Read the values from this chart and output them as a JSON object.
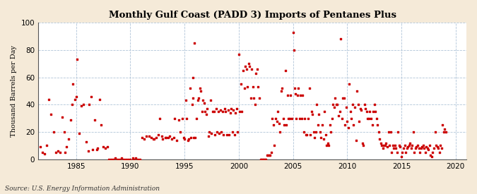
{
  "title": "Monthly Gulf Coast (PADD 3) Imports of Pentanes Plus",
  "ylabel": "Thousand Barrels per Day",
  "source": "Source: U.S. Energy Information Administration",
  "background_color": "#f5ead8",
  "plot_bg_color": "#ffffff",
  "dot_color": "#cc0000",
  "dot_size": 3,
  "xlim": [
    1981.5,
    2021
  ],
  "ylim": [
    0,
    100
  ],
  "yticks": [
    0,
    20,
    40,
    60,
    80,
    100
  ],
  "xticks": [
    1985,
    1990,
    1995,
    2000,
    2005,
    2010,
    2015,
    2020
  ],
  "data": [
    [
      1981.7,
      9
    ],
    [
      1981.9,
      5
    ],
    [
      1982.1,
      4
    ],
    [
      1982.3,
      10
    ],
    [
      1982.5,
      44
    ],
    [
      1982.7,
      33
    ],
    [
      1982.9,
      20
    ],
    [
      1983.1,
      5
    ],
    [
      1983.3,
      6
    ],
    [
      1983.5,
      5
    ],
    [
      1983.7,
      31
    ],
    [
      1983.9,
      20
    ],
    [
      1984.0,
      5
    ],
    [
      1984.1,
      9
    ],
    [
      1984.3,
      15
    ],
    [
      1984.5,
      29
    ],
    [
      1984.6,
      40
    ],
    [
      1984.7,
      55
    ],
    [
      1984.9,
      44
    ],
    [
      1985.0,
      46
    ],
    [
      1985.1,
      73
    ],
    [
      1985.3,
      19
    ],
    [
      1985.5,
      39
    ],
    [
      1985.7,
      40
    ],
    [
      1985.9,
      13
    ],
    [
      1986.1,
      6
    ],
    [
      1986.2,
      40
    ],
    [
      1986.4,
      46
    ],
    [
      1986.5,
      7
    ],
    [
      1986.7,
      29
    ],
    [
      1986.9,
      7
    ],
    [
      1987.0,
      8
    ],
    [
      1987.2,
      44
    ],
    [
      1987.3,
      25
    ],
    [
      1987.5,
      9
    ],
    [
      1987.7,
      8
    ],
    [
      1987.9,
      9
    ],
    [
      1988.0,
      0
    ],
    [
      1988.2,
      0
    ],
    [
      1988.4,
      0
    ],
    [
      1988.6,
      1
    ],
    [
      1988.8,
      0
    ],
    [
      1989.0,
      0
    ],
    [
      1989.2,
      1
    ],
    [
      1989.4,
      0
    ],
    [
      1989.6,
      0
    ],
    [
      1989.8,
      0
    ],
    [
      1990.0,
      0
    ],
    [
      1990.2,
      1
    ],
    [
      1990.3,
      0
    ],
    [
      1990.5,
      1
    ],
    [
      1990.7,
      0
    ],
    [
      1990.9,
      0
    ],
    [
      1991.1,
      16
    ],
    [
      1991.3,
      15
    ],
    [
      1991.5,
      17
    ],
    [
      1991.7,
      17
    ],
    [
      1991.9,
      16
    ],
    [
      1992.1,
      15
    ],
    [
      1992.2,
      15
    ],
    [
      1992.4,
      16
    ],
    [
      1992.6,
      18
    ],
    [
      1992.7,
      30
    ],
    [
      1992.9,
      17
    ],
    [
      1993.0,
      15
    ],
    [
      1993.2,
      16
    ],
    [
      1993.3,
      16
    ],
    [
      1993.5,
      16
    ],
    [
      1993.6,
      17
    ],
    [
      1993.8,
      15
    ],
    [
      1994.0,
      16
    ],
    [
      1994.1,
      30
    ],
    [
      1994.3,
      14
    ],
    [
      1994.5,
      29
    ],
    [
      1994.6,
      20
    ],
    [
      1994.8,
      30
    ],
    [
      1994.9,
      16
    ],
    [
      1995.0,
      15
    ],
    [
      1995.1,
      43
    ],
    [
      1995.2,
      30
    ],
    [
      1995.3,
      14
    ],
    [
      1995.4,
      15
    ],
    [
      1995.5,
      52
    ],
    [
      1995.6,
      16
    ],
    [
      1995.7,
      40
    ],
    [
      1995.75,
      45
    ],
    [
      1995.8,
      60
    ],
    [
      1995.85,
      16
    ],
    [
      1995.9,
      85
    ],
    [
      1996.0,
      16
    ],
    [
      1996.1,
      30
    ],
    [
      1996.2,
      43
    ],
    [
      1996.3,
      45
    ],
    [
      1996.4,
      52
    ],
    [
      1996.5,
      50
    ],
    [
      1996.6,
      35
    ],
    [
      1996.7,
      43
    ],
    [
      1996.8,
      41
    ],
    [
      1996.9,
      35
    ],
    [
      1997.0,
      33
    ],
    [
      1997.1,
      37
    ],
    [
      1997.2,
      17
    ],
    [
      1997.3,
      20
    ],
    [
      1997.4,
      43
    ],
    [
      1997.5,
      19
    ],
    [
      1997.6,
      35
    ],
    [
      1997.7,
      35
    ],
    [
      1997.8,
      18
    ],
    [
      1997.9,
      37
    ],
    [
      1998.0,
      20
    ],
    [
      1998.1,
      35
    ],
    [
      1998.2,
      19
    ],
    [
      1998.3,
      36
    ],
    [
      1998.4,
      20
    ],
    [
      1998.5,
      35
    ],
    [
      1998.6,
      18
    ],
    [
      1998.7,
      37
    ],
    [
      1998.8,
      35
    ],
    [
      1998.9,
      18
    ],
    [
      1999.0,
      36
    ],
    [
      1999.1,
      18
    ],
    [
      1999.2,
      34
    ],
    [
      1999.3,
      37
    ],
    [
      1999.4,
      20
    ],
    [
      1999.5,
      36
    ],
    [
      1999.6,
      18
    ],
    [
      1999.7,
      34
    ],
    [
      1999.8,
      37
    ],
    [
      1999.9,
      20
    ],
    [
      2000.0,
      77
    ],
    [
      2000.1,
      35
    ],
    [
      2000.2,
      55
    ],
    [
      2000.3,
      35
    ],
    [
      2000.4,
      65
    ],
    [
      2000.5,
      52
    ],
    [
      2000.6,
      68
    ],
    [
      2000.7,
      66
    ],
    [
      2000.8,
      53
    ],
    [
      2000.9,
      70
    ],
    [
      2001.0,
      68
    ],
    [
      2001.1,
      45
    ],
    [
      2001.2,
      66
    ],
    [
      2001.3,
      53
    ],
    [
      2001.4,
      45
    ],
    [
      2001.5,
      40
    ],
    [
      2001.6,
      63
    ],
    [
      2001.7,
      66
    ],
    [
      2001.8,
      53
    ],
    [
      2001.9,
      45
    ],
    [
      2002.0,
      0
    ],
    [
      2002.1,
      0
    ],
    [
      2002.2,
      0
    ],
    [
      2002.3,
      0
    ],
    [
      2002.4,
      0
    ],
    [
      2002.5,
      0
    ],
    [
      2002.6,
      3
    ],
    [
      2002.7,
      3
    ],
    [
      2002.8,
      3
    ],
    [
      2002.9,
      3
    ],
    [
      2003.0,
      5
    ],
    [
      2003.1,
      30
    ],
    [
      2003.2,
      25
    ],
    [
      2003.3,
      10
    ],
    [
      2003.4,
      30
    ],
    [
      2003.5,
      28
    ],
    [
      2003.6,
      35
    ],
    [
      2003.7,
      26
    ],
    [
      2003.8,
      20
    ],
    [
      2003.9,
      50
    ],
    [
      2004.0,
      52
    ],
    [
      2004.1,
      30
    ],
    [
      2004.2,
      25
    ],
    [
      2004.3,
      65
    ],
    [
      2004.4,
      25
    ],
    [
      2004.5,
      47
    ],
    [
      2004.6,
      30
    ],
    [
      2004.7,
      30
    ],
    [
      2004.8,
      47
    ],
    [
      2004.9,
      30
    ],
    [
      2005.0,
      93
    ],
    [
      2005.1,
      80
    ],
    [
      2005.15,
      52
    ],
    [
      2005.2,
      48
    ],
    [
      2005.3,
      30
    ],
    [
      2005.4,
      47
    ],
    [
      2005.5,
      52
    ],
    [
      2005.6,
      30
    ],
    [
      2005.7,
      47
    ],
    [
      2005.8,
      30
    ],
    [
      2005.9,
      47
    ],
    [
      2006.0,
      20
    ],
    [
      2006.1,
      30
    ],
    [
      2006.2,
      18
    ],
    [
      2006.3,
      18
    ],
    [
      2006.4,
      30
    ],
    [
      2006.5,
      52
    ],
    [
      2006.6,
      18
    ],
    [
      2006.7,
      35
    ],
    [
      2006.8,
      33
    ],
    [
      2006.9,
      20
    ],
    [
      2007.0,
      16
    ],
    [
      2007.1,
      20
    ],
    [
      2007.2,
      40
    ],
    [
      2007.3,
      25
    ],
    [
      2007.4,
      33
    ],
    [
      2007.5,
      20
    ],
    [
      2007.6,
      16
    ],
    [
      2007.7,
      25
    ],
    [
      2007.8,
      15
    ],
    [
      2007.9,
      35
    ],
    [
      2008.0,
      18
    ],
    [
      2008.1,
      10
    ],
    [
      2008.2,
      12
    ],
    [
      2008.3,
      10
    ],
    [
      2008.4,
      25
    ],
    [
      2008.5,
      20
    ],
    [
      2008.6,
      30
    ],
    [
      2008.7,
      40
    ],
    [
      2008.8,
      38
    ],
    [
      2008.9,
      45
    ],
    [
      2009.0,
      40
    ],
    [
      2009.1,
      40
    ],
    [
      2009.2,
      32
    ],
    [
      2009.3,
      35
    ],
    [
      2009.4,
      88
    ],
    [
      2009.5,
      30
    ],
    [
      2009.6,
      45
    ],
    [
      2009.7,
      45
    ],
    [
      2009.8,
      25
    ],
    [
      2009.9,
      38
    ],
    [
      2010.0,
      28
    ],
    [
      2010.1,
      23
    ],
    [
      2010.2,
      55
    ],
    [
      2010.3,
      35
    ],
    [
      2010.4,
      30
    ],
    [
      2010.5,
      40
    ],
    [
      2010.6,
      25
    ],
    [
      2010.7,
      38
    ],
    [
      2010.8,
      14
    ],
    [
      2010.9,
      50
    ],
    [
      2011.0,
      40
    ],
    [
      2011.1,
      28
    ],
    [
      2011.2,
      37
    ],
    [
      2011.3,
      36
    ],
    [
      2011.4,
      12
    ],
    [
      2011.5,
      10
    ],
    [
      2011.6,
      40
    ],
    [
      2011.7,
      37
    ],
    [
      2011.8,
      35
    ],
    [
      2011.9,
      30
    ],
    [
      2012.0,
      30
    ],
    [
      2012.1,
      35
    ],
    [
      2012.2,
      30
    ],
    [
      2012.3,
      25
    ],
    [
      2012.4,
      35
    ],
    [
      2012.5,
      40
    ],
    [
      2012.6,
      35
    ],
    [
      2012.7,
      30
    ],
    [
      2012.8,
      25
    ],
    [
      2012.9,
      20
    ],
    [
      2013.0,
      15
    ],
    [
      2013.1,
      12
    ],
    [
      2013.2,
      10
    ],
    [
      2013.3,
      8
    ],
    [
      2013.4,
      10
    ],
    [
      2013.5,
      10
    ],
    [
      2013.6,
      12
    ],
    [
      2013.7,
      9
    ],
    [
      2013.8,
      20
    ],
    [
      2013.9,
      10
    ],
    [
      2014.0,
      20
    ],
    [
      2014.1,
      5
    ],
    [
      2014.2,
      10
    ],
    [
      2014.3,
      8
    ],
    [
      2014.4,
      10
    ],
    [
      2014.5,
      8
    ],
    [
      2014.6,
      5
    ],
    [
      2014.7,
      20
    ],
    [
      2014.8,
      10
    ],
    [
      2014.9,
      9
    ],
    [
      2015.0,
      2
    ],
    [
      2015.1,
      5
    ],
    [
      2015.2,
      8
    ],
    [
      2015.3,
      10
    ],
    [
      2015.4,
      5
    ],
    [
      2015.5,
      8
    ],
    [
      2015.6,
      9
    ],
    [
      2015.7,
      10
    ],
    [
      2015.8,
      12
    ],
    [
      2015.9,
      8
    ],
    [
      2016.0,
      10
    ],
    [
      2016.1,
      20
    ],
    [
      2016.2,
      5
    ],
    [
      2016.3,
      8
    ],
    [
      2016.4,
      9
    ],
    [
      2016.5,
      10
    ],
    [
      2016.6,
      8
    ],
    [
      2016.7,
      5
    ],
    [
      2016.8,
      8
    ],
    [
      2016.9,
      9
    ],
    [
      2017.0,
      10
    ],
    [
      2017.1,
      8
    ],
    [
      2017.2,
      5
    ],
    [
      2017.3,
      9
    ],
    [
      2017.4,
      8
    ],
    [
      2017.5,
      7
    ],
    [
      2017.6,
      10
    ],
    [
      2017.7,
      3
    ],
    [
      2017.8,
      2
    ],
    [
      2017.9,
      5
    ],
    [
      2018.0,
      8
    ],
    [
      2018.1,
      20
    ],
    [
      2018.2,
      10
    ],
    [
      2018.3,
      9
    ],
    [
      2018.4,
      8
    ],
    [
      2018.5,
      5
    ],
    [
      2018.6,
      10
    ],
    [
      2018.7,
      8
    ],
    [
      2018.8,
      25
    ],
    [
      2018.9,
      20
    ],
    [
      2019.0,
      22
    ],
    [
      2019.1,
      20
    ]
  ]
}
